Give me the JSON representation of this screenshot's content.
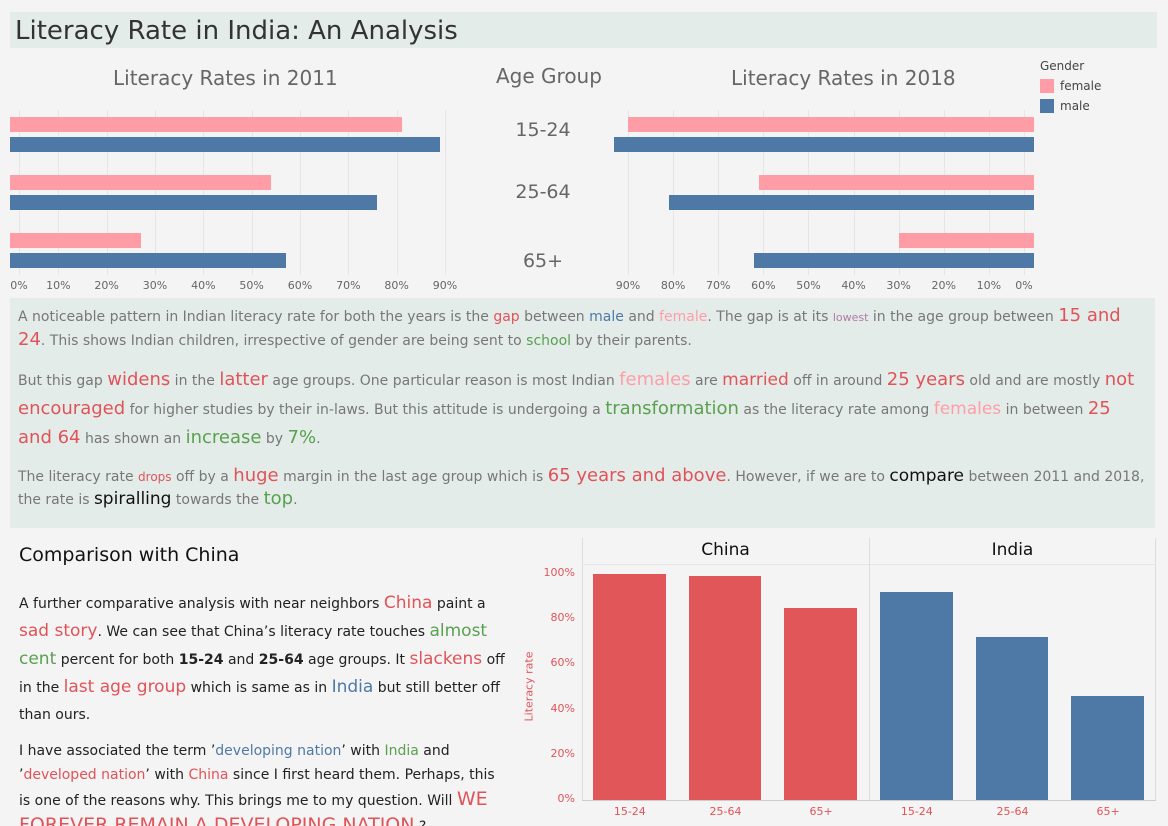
{
  "title": "Literacy Rate in India: An Analysis",
  "colors": {
    "female": "#ff9da7",
    "male": "#4e79a7",
    "china": "#e15759",
    "india": "#4e79a7"
  },
  "legend": {
    "title": "Gender",
    "female": "female",
    "male": "male"
  },
  "age_group_header": "Age Group",
  "paragraphs": {
    "p1": [
      [
        "A noticeable pattern in Indian literacy rate for both the years is the ",
        ""
      ],
      [
        "gap",
        "red"
      ],
      [
        " between ",
        ""
      ],
      [
        "male",
        "blue"
      ],
      [
        " and ",
        ""
      ],
      [
        "female",
        "pink"
      ],
      [
        ". The gap is at its ",
        ""
      ],
      [
        "lowest",
        "purple s11"
      ],
      [
        " in the age group between ",
        ""
      ],
      [
        "15 and 24",
        "red s18"
      ],
      [
        ". This shows Indian children, irrespective of gender are being sent to ",
        ""
      ],
      [
        "school",
        "green"
      ],
      [
        " by their parents.",
        ""
      ]
    ],
    "p2": [
      [
        "But this gap ",
        ""
      ],
      [
        "widens",
        "red s18"
      ],
      [
        " in the ",
        ""
      ],
      [
        "latter",
        "red s18"
      ],
      [
        " age groups. One particular reason is most Indian ",
        ""
      ],
      [
        "females",
        "pink s18"
      ],
      [
        " are ",
        ""
      ],
      [
        "married",
        "red s17"
      ],
      [
        " off in around ",
        ""
      ],
      [
        "25 years",
        "red s18"
      ],
      [
        " old and are mostly ",
        ""
      ],
      [
        "not encouraged",
        "red s18"
      ],
      [
        " for higher studies by their in-laws. But this attitude is undergoing a ",
        ""
      ],
      [
        "transformation",
        "green s18"
      ],
      [
        " as the literacy rate among ",
        ""
      ],
      [
        "females",
        "pink s17"
      ],
      [
        " in between ",
        ""
      ],
      [
        "25 and 64",
        "red s18"
      ],
      [
        " has shown an ",
        ""
      ],
      [
        "increase",
        "green s18"
      ],
      [
        " by ",
        ""
      ],
      [
        "7%",
        "green s18"
      ],
      [
        ".",
        ""
      ]
    ],
    "p3": [
      [
        "The literacy rate ",
        ""
      ],
      [
        "drops",
        "red s12"
      ],
      [
        " off by a ",
        ""
      ],
      [
        "huge",
        "red s18"
      ],
      [
        " margin in the last age group which is ",
        ""
      ],
      [
        "65 years and above",
        "red s18"
      ],
      [
        ". However, if we are to ",
        ""
      ],
      [
        "compare",
        "black s17"
      ],
      [
        " between 2011 and 2018, the rate is ",
        ""
      ],
      [
        "spiralling",
        "black s17"
      ],
      [
        " towards the ",
        ""
      ],
      [
        "top",
        "green s18"
      ],
      [
        ".",
        ""
      ]
    ]
  },
  "comparison": {
    "heading": "Comparison with China",
    "p1": [
      [
        "A further comparative analysis with near neighbors ",
        ""
      ],
      [
        "China",
        "red s17"
      ],
      [
        " paint a ",
        ""
      ],
      [
        "sad story",
        "red s17"
      ],
      [
        ". We can see that China’s literacy rate touches ",
        ""
      ],
      [
        "almost cent",
        "green s17"
      ],
      [
        " percent for both ",
        ""
      ],
      [
        "15-24",
        "b"
      ],
      [
        " and ",
        ""
      ],
      [
        "25-64",
        "b"
      ],
      [
        " age groups. It ",
        ""
      ],
      [
        "slackens",
        "red s17"
      ],
      [
        " off in the ",
        ""
      ],
      [
        "last age group",
        "red s17"
      ],
      [
        " which is same as in ",
        ""
      ],
      [
        "India",
        "blue s17"
      ],
      [
        " but still better off than ours.",
        ""
      ]
    ],
    "p2": [
      [
        "I have associated the term ’",
        ""
      ],
      [
        "developing nation",
        "blue"
      ],
      [
        "’ with ",
        ""
      ],
      [
        "India",
        "green"
      ],
      [
        " and ’",
        ""
      ],
      [
        "developed nation",
        "red"
      ],
      [
        "’ with ",
        ""
      ],
      [
        "China",
        "red"
      ],
      [
        " since I first heard them. Perhaps, this is one of the reasons why. This brings me to my question. Will ",
        ""
      ],
      [
        "WE FOREVER REMAIN A DEVELOPING NATION",
        "red s19"
      ],
      [
        " ?",
        ""
      ]
    ]
  },
  "chart_data": [
    {
      "type": "bar",
      "orientation": "horizontal",
      "title": "Literacy Rates in 2011",
      "categories": [
        "15-24",
        "25-64",
        "65+"
      ],
      "series": [
        {
          "name": "female",
          "values": [
            81,
            54,
            27
          ]
        },
        {
          "name": "male",
          "values": [
            89,
            76,
            57
          ]
        }
      ],
      "xlim": [
        0,
        90
      ],
      "ticks": [
        "0%",
        "10%",
        "20%",
        "30%",
        "40%",
        "50%",
        "60%",
        "70%",
        "80%",
        "90%"
      ]
    },
    {
      "type": "bar",
      "orientation": "horizontal",
      "direction": "reversed",
      "title": "Literacy Rates in 2018",
      "categories": [
        "15-24",
        "25-64",
        "65+"
      ],
      "series": [
        {
          "name": "female",
          "values": [
            90,
            61,
            30
          ]
        },
        {
          "name": "male",
          "values": [
            93,
            81,
            62
          ]
        }
      ],
      "xlim": [
        0,
        90
      ],
      "ticks": [
        "90%",
        "80%",
        "70%",
        "60%",
        "50%",
        "40%",
        "30%",
        "20%",
        "10%",
        "0%"
      ]
    },
    {
      "type": "bar",
      "panels": [
        {
          "title": "China",
          "categories": [
            "15-24",
            "25-64",
            "65+"
          ],
          "values": [
            100,
            99,
            85
          ]
        },
        {
          "title": "India",
          "categories": [
            "15-24",
            "25-64",
            "65+"
          ],
          "values": [
            92,
            72,
            46
          ]
        }
      ],
      "ylabel": "Literacy rate",
      "ylim": [
        0,
        100
      ],
      "yticks": [
        "0%",
        "20%",
        "40%",
        "60%",
        "80%",
        "100%"
      ]
    }
  ]
}
